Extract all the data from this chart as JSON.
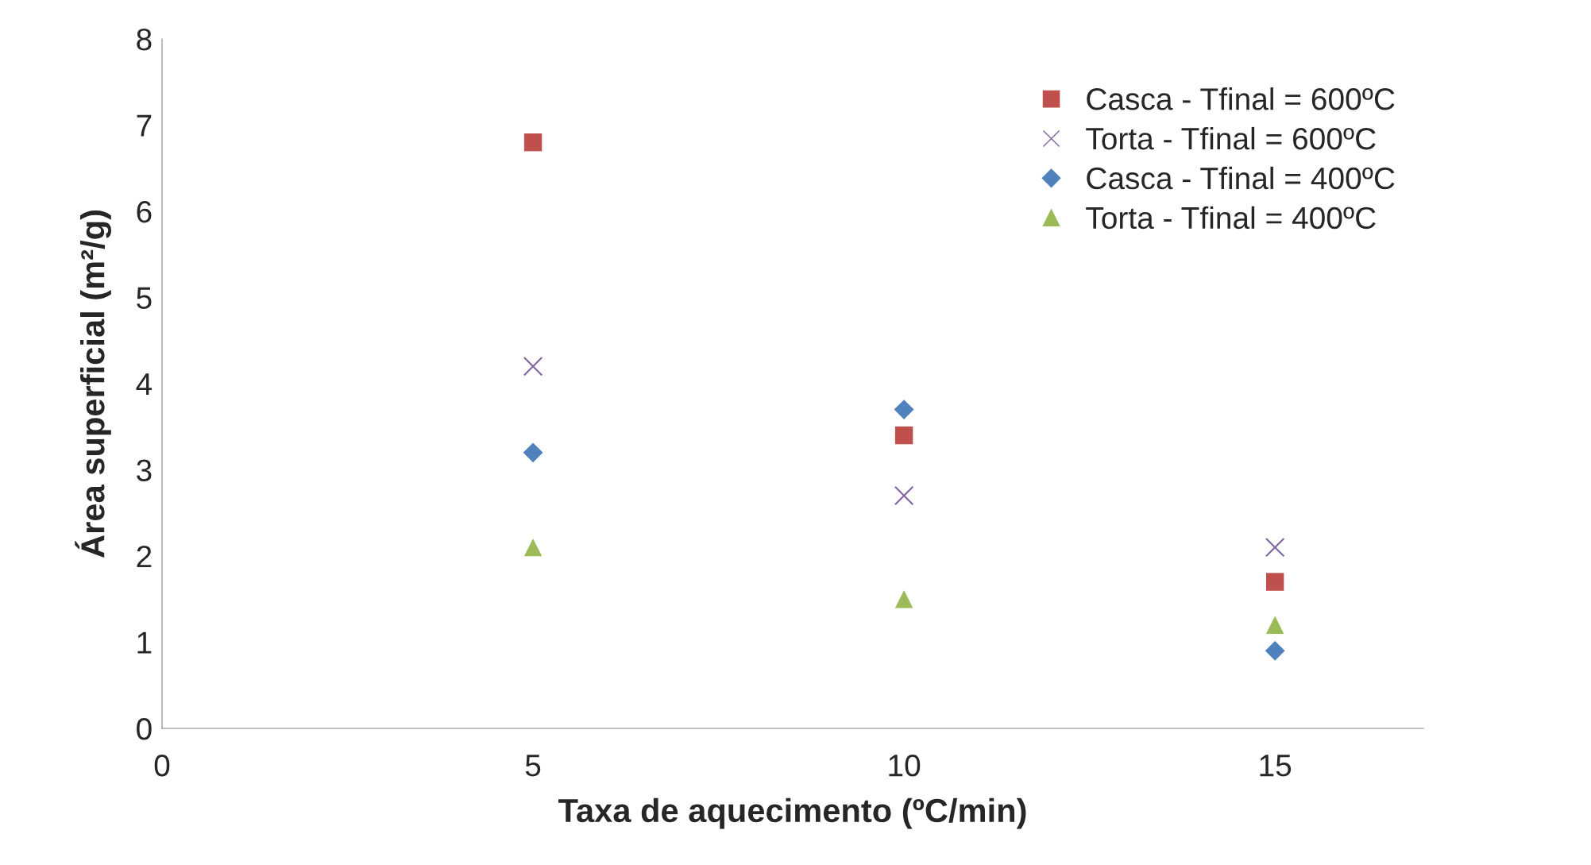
{
  "chart_data": {
    "type": "scatter",
    "xlabel": "Taxa de aquecimento (ºC/min)",
    "ylabel": "Área superficial (m²/g)",
    "xlim": [
      0,
      17
    ],
    "xticks": [
      0,
      5,
      10,
      15
    ],
    "ylim": [
      0,
      8
    ],
    "yticks": [
      0,
      1,
      2,
      3,
      4,
      5,
      6,
      7,
      8
    ],
    "grid": false,
    "legend": "top right",
    "series": [
      {
        "name": "Casca - Tfinal = 600ºC",
        "color": "#c0504d",
        "marker": "square",
        "x": [
          5,
          10,
          15
        ],
        "values": [
          6.8,
          3.4,
          1.7
        ]
      },
      {
        "name": "Torta - Tfinal = 600ºC",
        "color": "#8064a2",
        "marker": "cross",
        "x": [
          5,
          10,
          15
        ],
        "values": [
          4.2,
          2.7,
          2.1
        ]
      },
      {
        "name": "Casca - Tfinal = 400ºC",
        "color": "#4f81bd",
        "marker": "diamond",
        "x": [
          5,
          10,
          15
        ],
        "values": [
          3.2,
          3.7,
          0.9
        ]
      },
      {
        "name": "Torta - Tfinal = 400ºC",
        "color": "#9bbb59",
        "marker": "triangle",
        "x": [
          5,
          10,
          15
        ],
        "values": [
          2.1,
          1.5,
          1.2
        ]
      }
    ]
  }
}
